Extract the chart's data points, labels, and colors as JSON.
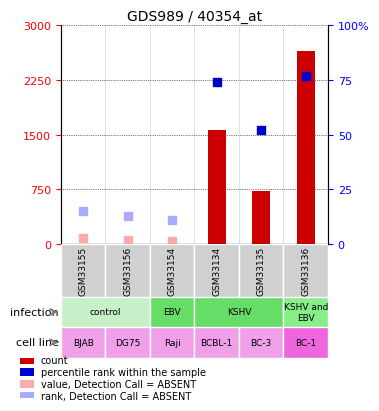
{
  "title": "GDS989 / 40354_at",
  "samples": [
    "GSM33155",
    "GSM33156",
    "GSM33154",
    "GSM33134",
    "GSM33135",
    "GSM33136"
  ],
  "count_values": [
    null,
    null,
    null,
    1560,
    730,
    2650
  ],
  "count_absent": [
    80,
    60,
    40,
    null,
    null,
    null
  ],
  "rank_values": [
    null,
    null,
    null,
    2230,
    1560,
    2300
  ],
  "rank_absent": [
    460,
    380,
    330,
    null,
    null,
    null
  ],
  "ylim_left": [
    0,
    3000
  ],
  "ylim_right": [
    0,
    100
  ],
  "yticks_left": [
    0,
    750,
    1500,
    2250,
    3000
  ],
  "yticks_right": [
    0,
    25,
    50,
    75,
    100
  ],
  "ytick_labels_right": [
    "0",
    "25",
    "50",
    "75",
    "100%"
  ],
  "infection_groups": [
    {
      "label": "control",
      "start": 0,
      "end": 2,
      "color": "#c8f0c8"
    },
    {
      "label": "EBV",
      "start": 2,
      "end": 3,
      "color": "#66dd66"
    },
    {
      "label": "KSHV",
      "start": 3,
      "end": 5,
      "color": "#66dd66"
    },
    {
      "label": "KSHV and\nEBV",
      "start": 5,
      "end": 6,
      "color": "#88ee88"
    }
  ],
  "cell_lines": [
    "BJAB",
    "DG75",
    "Raji",
    "BCBL-1",
    "BC-3",
    "BC-1"
  ],
  "cell_line_colors": [
    "#f0a0e8",
    "#f0a0e8",
    "#f0a0e8",
    "#f0a0e8",
    "#f0a0e8",
    "#ee66dd"
  ],
  "bar_color": "#cc0000",
  "rank_present_color": "#0000cc",
  "count_absent_color": "#ffaaaa",
  "rank_absent_color": "#aaaaff",
  "legend_items": [
    {
      "color": "#cc0000",
      "label": "count"
    },
    {
      "color": "#0000cc",
      "label": "percentile rank within the sample"
    },
    {
      "color": "#ffaaaa",
      "label": "value, Detection Call = ABSENT"
    },
    {
      "color": "#aaaaff",
      "label": "rank, Detection Call = ABSENT"
    }
  ]
}
